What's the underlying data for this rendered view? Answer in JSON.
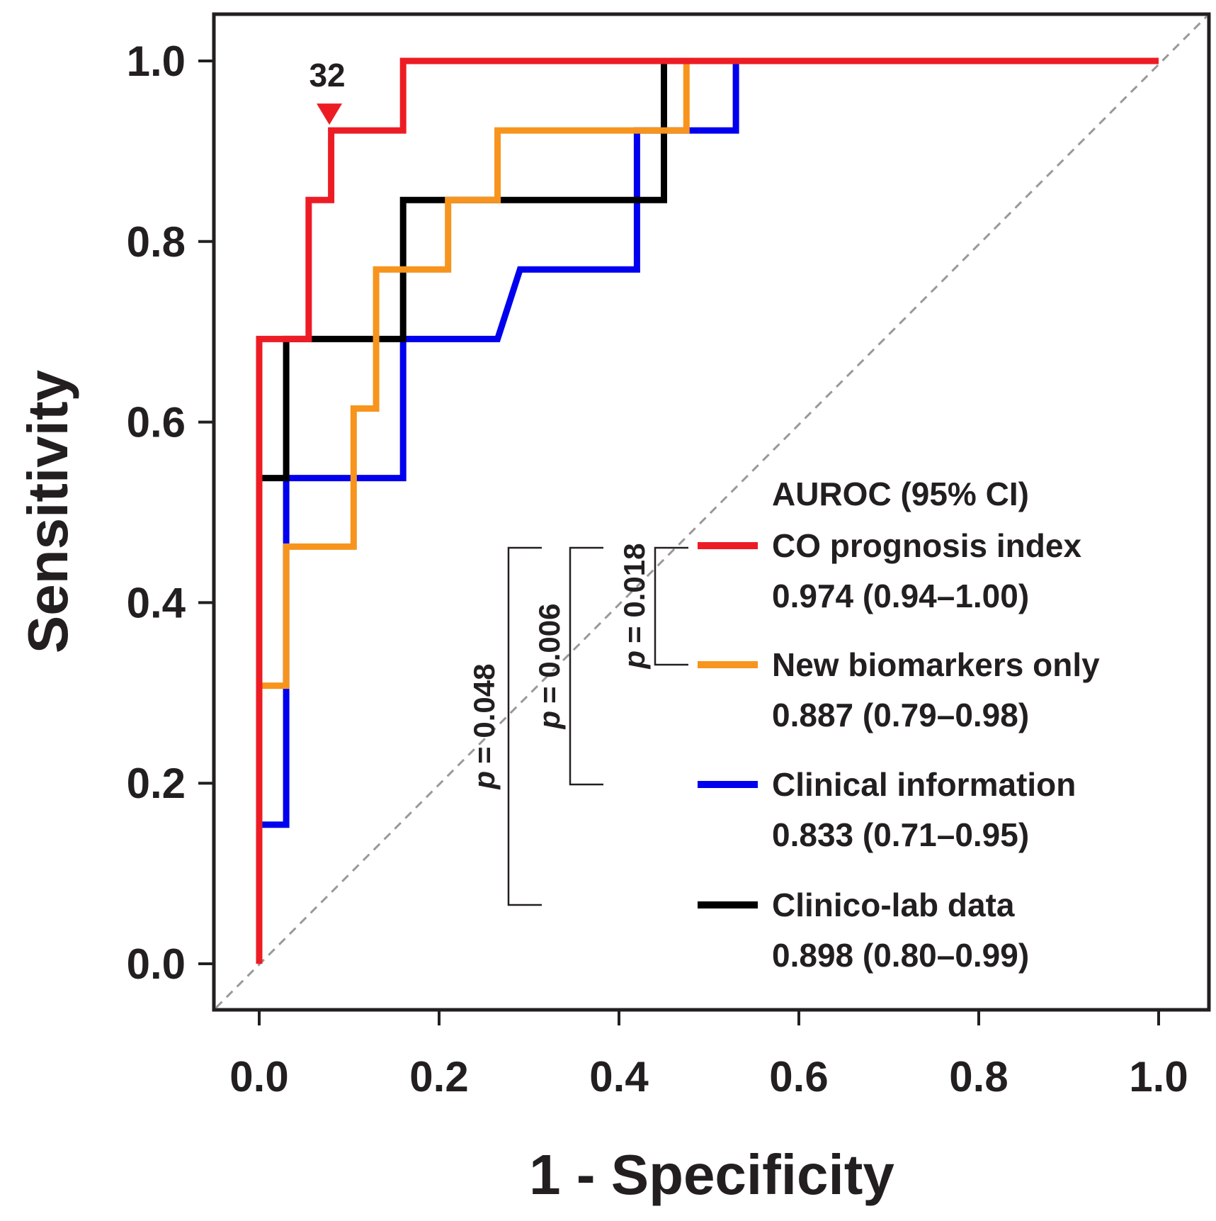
{
  "chart_data": {
    "type": "line",
    "title": "",
    "xlabel": "1 - Specificity",
    "ylabel": "Sensitivity",
    "xlim": [
      0,
      1
    ],
    "ylim": [
      0,
      1
    ],
    "x_ticks": [
      "0.0",
      "0.2",
      "0.4",
      "0.6",
      "0.8",
      "1.0"
    ],
    "y_ticks": [
      "0.0",
      "0.2",
      "0.4",
      "0.6",
      "0.8",
      "1.0"
    ],
    "grid": false,
    "reference_line": {
      "from": [
        0,
        0
      ],
      "to": [
        1,
        1
      ],
      "style": "dashed",
      "color": "#999999"
    },
    "legend_title": "AUROC (95% CI)",
    "legend_position": "bottom-right",
    "series": [
      {
        "name": "Clinical information",
        "auroc": "0.833 (0.71–0.95)",
        "color": "#0000ee",
        "points": [
          [
            0,
            0
          ],
          [
            0,
            0.154
          ],
          [
            0.03,
            0.154
          ],
          [
            0.03,
            0.308
          ],
          [
            0.03,
            0.538
          ],
          [
            0.11,
            0.538
          ],
          [
            0.16,
            0.538
          ],
          [
            0.16,
            0.692
          ],
          [
            0.265,
            0.692
          ],
          [
            0.29,
            0.769
          ],
          [
            0.42,
            0.769
          ],
          [
            0.42,
            0.923
          ],
          [
            0.53,
            0.923
          ],
          [
            0.53,
            1
          ],
          [
            1,
            1
          ]
        ]
      },
      {
        "name": "Clinico-lab data",
        "auroc": "0.898 (0.80–0.99)",
        "color": "#000000",
        "points": [
          [
            0,
            0
          ],
          [
            0,
            0.538
          ],
          [
            0.03,
            0.538
          ],
          [
            0.03,
            0.692
          ],
          [
            0.16,
            0.692
          ],
          [
            0.16,
            0.846
          ],
          [
            0.45,
            0.846
          ],
          [
            0.45,
            1
          ],
          [
            1,
            1
          ]
        ]
      },
      {
        "name": "New biomarkers only",
        "auroc": "0.887 (0.79–0.98)",
        "color": "#f7941d",
        "points": [
          [
            0,
            0
          ],
          [
            0,
            0.308
          ],
          [
            0.03,
            0.308
          ],
          [
            0.03,
            0.462
          ],
          [
            0.105,
            0.462
          ],
          [
            0.105,
            0.615
          ],
          [
            0.13,
            0.615
          ],
          [
            0.13,
            0.769
          ],
          [
            0.21,
            0.769
          ],
          [
            0.21,
            0.846
          ],
          [
            0.265,
            0.846
          ],
          [
            0.265,
            0.923
          ],
          [
            0.475,
            0.923
          ],
          [
            0.475,
            1
          ],
          [
            1,
            1
          ]
        ]
      },
      {
        "name": "CO prognosis index",
        "auroc": "0.974 (0.94–1.00)",
        "color": "#ed1c24",
        "points": [
          [
            0,
            0
          ],
          [
            0,
            0.692
          ],
          [
            0.055,
            0.692
          ],
          [
            0.055,
            0.846
          ],
          [
            0.08,
            0.846
          ],
          [
            0.08,
            0.923
          ],
          [
            0.16,
            0.923
          ],
          [
            0.16,
            1
          ],
          [
            1,
            1
          ]
        ]
      }
    ],
    "annotations": [
      {
        "text": "32",
        "marker": "red-triangle-down",
        "x": 0.078,
        "y": 0.923
      }
    ],
    "comparisons": [
      {
        "label": "p",
        "value": "= 0.018",
        "between": [
          "CO prognosis index",
          "New biomarkers only"
        ]
      },
      {
        "label": "p",
        "value": "= 0.006",
        "between": [
          "CO prognosis index",
          "Clinical information"
        ]
      },
      {
        "label": "p",
        "value": "= 0.048",
        "between": [
          "CO prognosis index",
          "Clinico-lab data"
        ]
      }
    ]
  }
}
